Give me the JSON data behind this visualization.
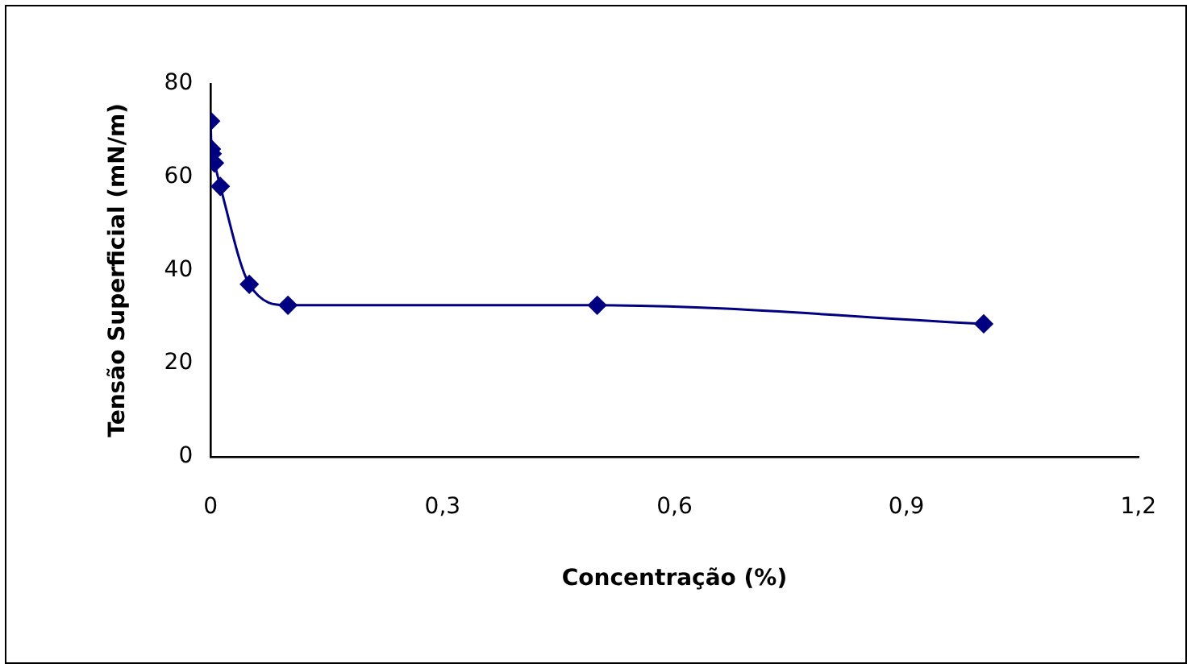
{
  "chart_data": {
    "type": "line",
    "xlabel": "Concentração (%)",
    "ylabel": "Tensão Superficial (mN/m)",
    "x": [
      0,
      0.001,
      0.002,
      0.005,
      0.0125,
      0.05,
      0.1,
      0.5,
      1
    ],
    "series": [
      {
        "color": "#000080",
        "values": [
          72,
          66,
          65,
          63,
          58,
          37,
          32.5,
          32.5,
          28.5
        ]
      }
    ],
    "xlim": [
      0,
      1.2
    ],
    "xticks": [
      {
        "value": 0,
        "label": "0"
      },
      {
        "value": 0.3,
        "label": "0,3"
      },
      {
        "value": 0.6,
        "label": "0,6"
      },
      {
        "value": 0.9,
        "label": "0,9"
      },
      {
        "value": 1.2,
        "label": "1,2"
      }
    ],
    "ylim": [
      0,
      80
    ],
    "yticks": [
      0,
      20,
      40,
      60,
      80
    ],
    "grid": false,
    "legend": false,
    "marker": "diamond",
    "line_style": "solid"
  }
}
